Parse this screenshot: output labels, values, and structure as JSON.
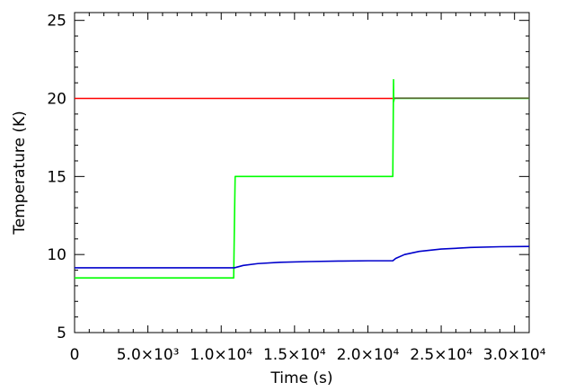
{
  "chart_data": {
    "type": "line",
    "title": "",
    "xlabel": "Time (s)",
    "ylabel": "Temperature (K)",
    "xlim": [
      0,
      31000
    ],
    "ylim": [
      5,
      25.5
    ],
    "grid": false,
    "legend": "none",
    "x_ticks": [
      {
        "value": 0,
        "label": "0"
      },
      {
        "value": 5000,
        "label": "5.0×10³"
      },
      {
        "value": 10000,
        "label": "1.0×10⁴"
      },
      {
        "value": 15000,
        "label": "1.5×10⁴"
      },
      {
        "value": 20000,
        "label": "2.0×10⁴"
      },
      {
        "value": 25000,
        "label": "2.5×10⁴"
      },
      {
        "value": 30000,
        "label": "3.0×10⁴"
      }
    ],
    "y_ticks": [
      {
        "value": 5,
        "label": "5"
      },
      {
        "value": 10,
        "label": "10"
      },
      {
        "value": 15,
        "label": "15"
      },
      {
        "value": 20,
        "label": "20"
      },
      {
        "value": 25,
        "label": "25"
      }
    ],
    "series": [
      {
        "color": "#ff0000",
        "x": [
          0,
          21700
        ],
        "y": [
          20.0,
          20.0
        ]
      },
      {
        "color": "#00ff00",
        "x": [
          0,
          10850,
          10900,
          10950,
          21700,
          21750,
          21760,
          21800,
          21850,
          31000
        ],
        "y": [
          8.5,
          8.5,
          12.0,
          15.0,
          15.0,
          21.2,
          19.8,
          20.0,
          20.0,
          20.0
        ]
      },
      {
        "color": "#556b2f",
        "x": [
          21800,
          31000
        ],
        "y": [
          20.02,
          20.02
        ]
      },
      {
        "color": "#0000cc",
        "x": [
          0,
          10900,
          11500,
          12500,
          14000,
          16000,
          18000,
          20000,
          21700,
          21900,
          22500,
          23500,
          25000,
          27000,
          29000,
          31000
        ],
        "y": [
          9.15,
          9.15,
          9.3,
          9.42,
          9.5,
          9.55,
          9.58,
          9.6,
          9.6,
          9.75,
          10.0,
          10.2,
          10.35,
          10.45,
          10.5,
          10.52
        ]
      }
    ]
  }
}
